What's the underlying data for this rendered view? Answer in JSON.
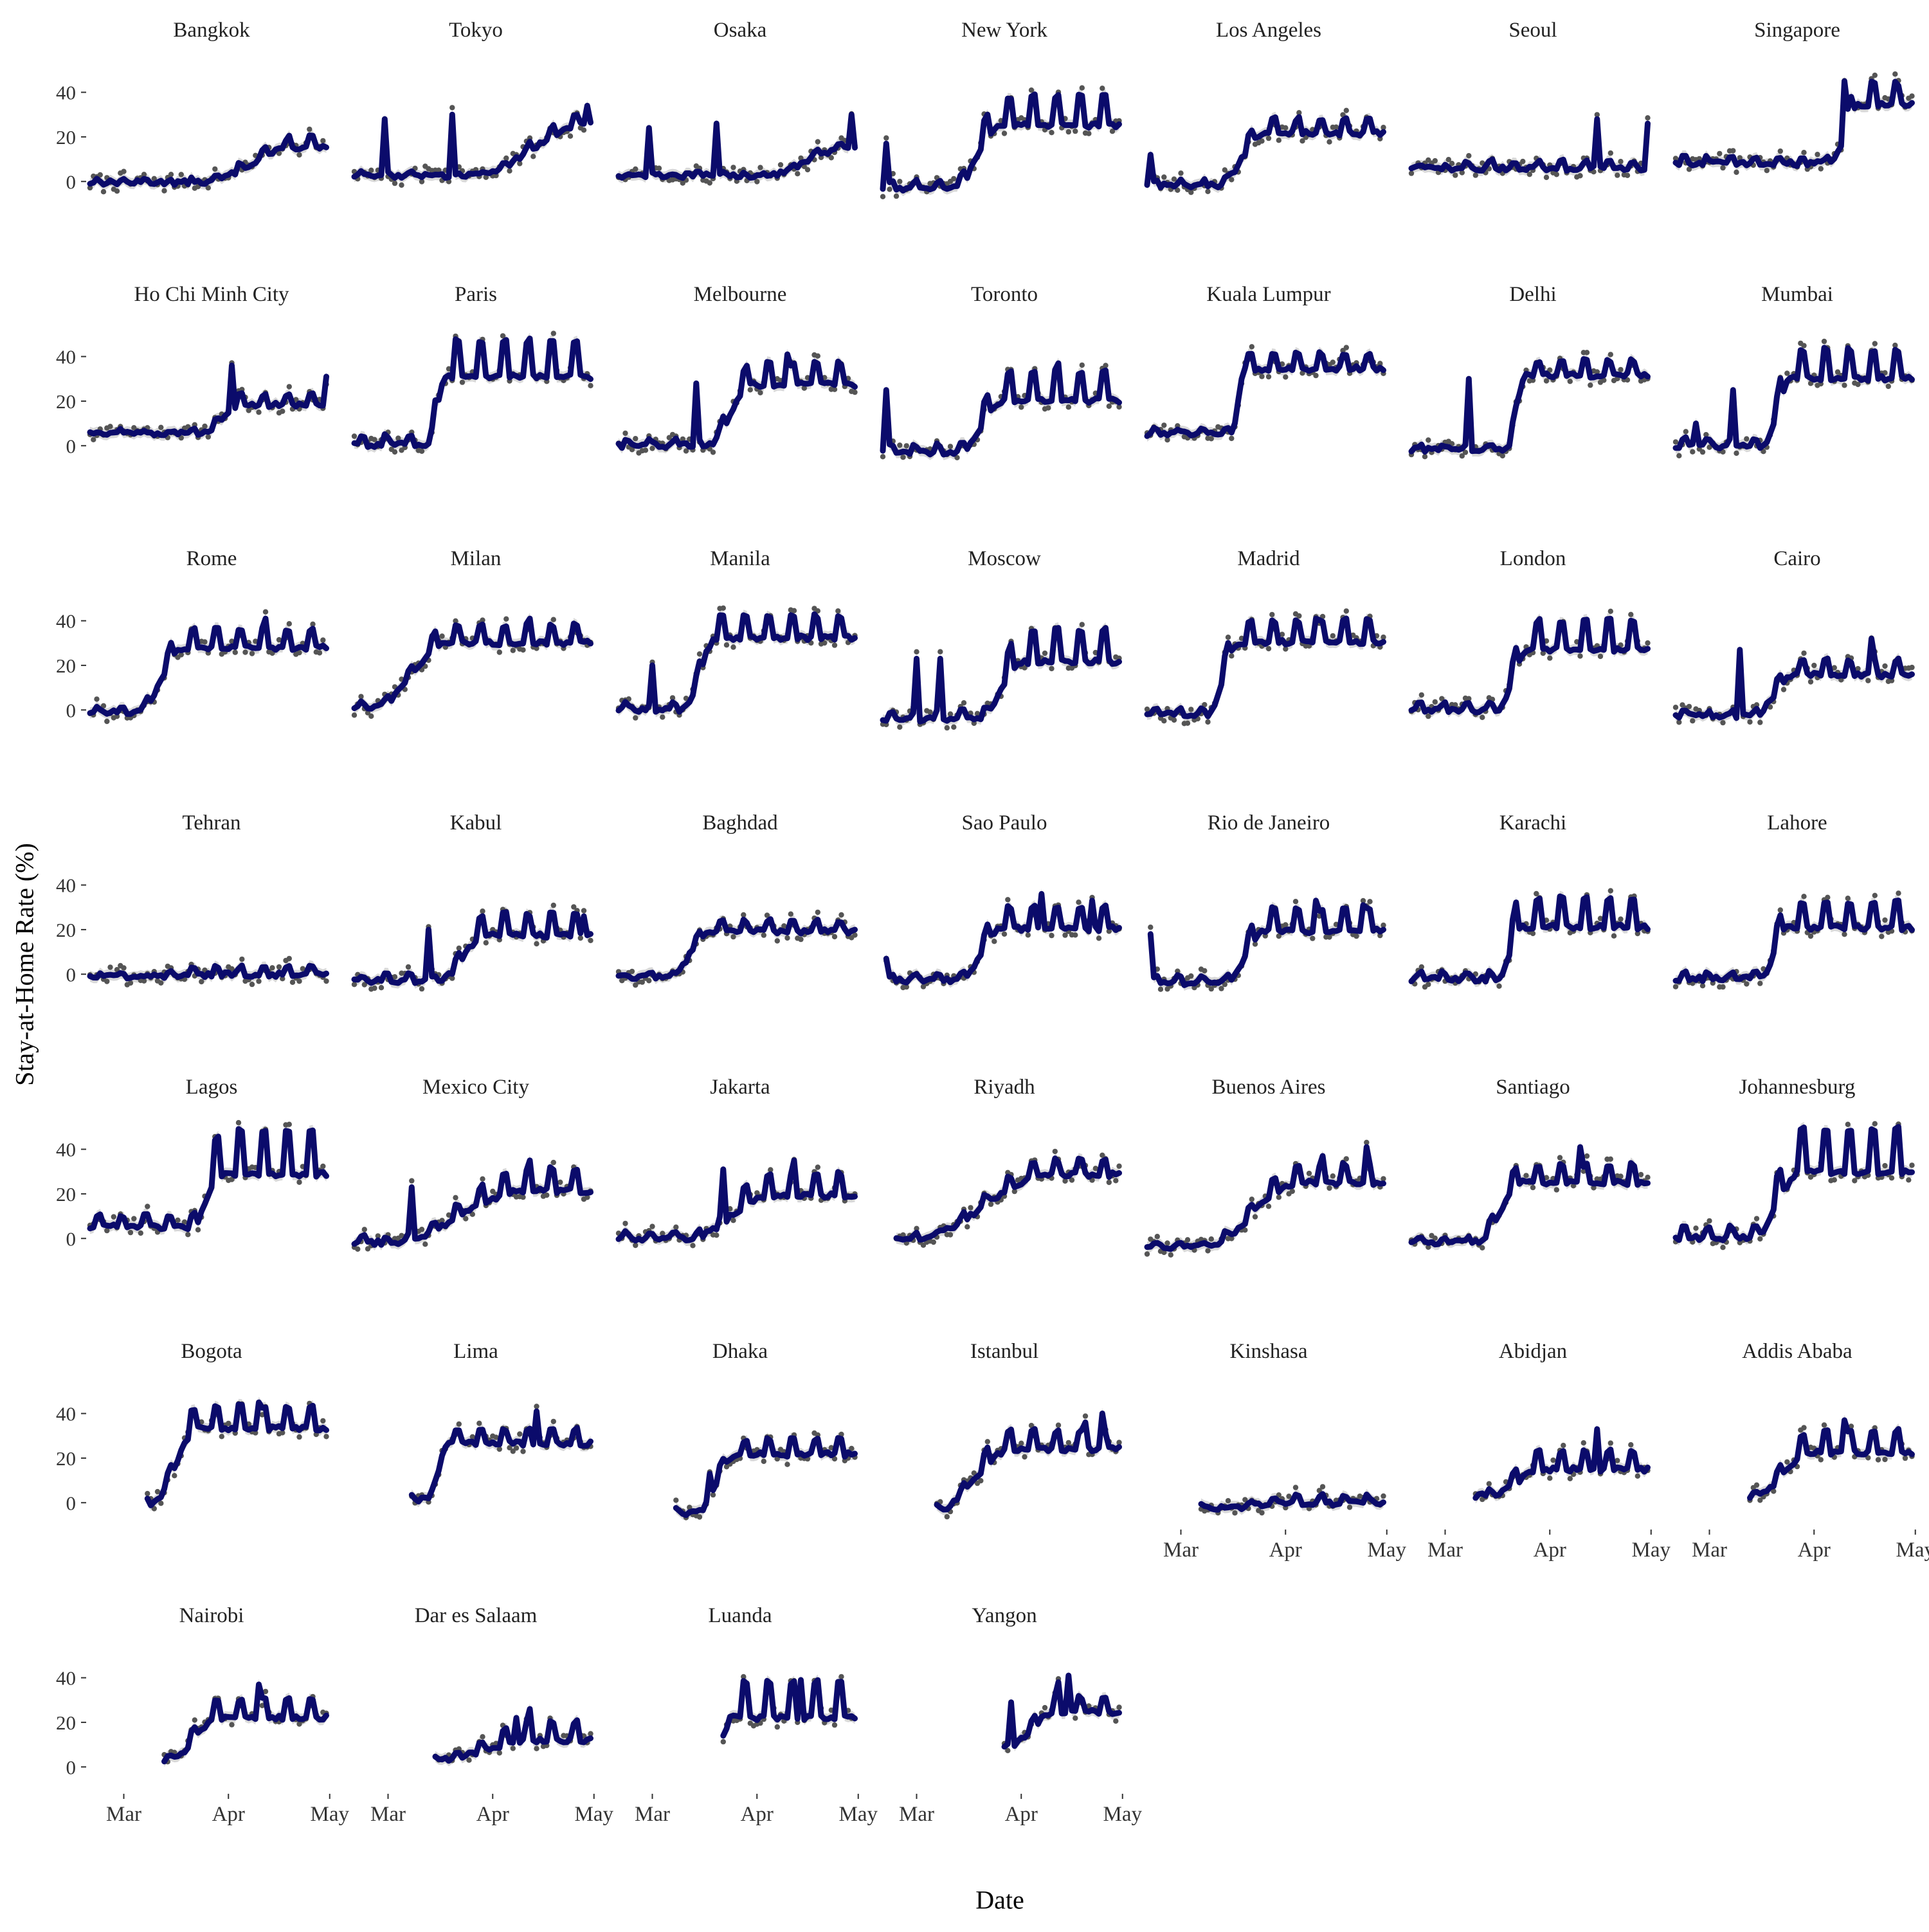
{
  "chart_data": {
    "type": "line",
    "layout": "facet-grid",
    "ylabel": "Stay-at-Home Rate (%)",
    "xlabel": "Date",
    "ylim": [
      -8,
      54
    ],
    "y_ticks": [
      0,
      20,
      40
    ],
    "x_domain": [
      "2020-02-20",
      "2020-05-02"
    ],
    "x_ticks": [
      {
        "date": "2020-03-01",
        "label": "Mar"
      },
      {
        "date": "2020-04-01",
        "label": "Apr"
      },
      {
        "date": "2020-05-01",
        "label": "May"
      }
    ],
    "colors": {
      "line": "#0b0b6b",
      "band": "#cccccc",
      "points": "#555555",
      "axis": "#333333",
      "text": "#222222"
    },
    "grid": false,
    "legend": "none",
    "facets": [
      {
        "city": "Bangkok",
        "start": "2020-02-20",
        "end": "2020-04-30",
        "base": 0,
        "plateau": 17,
        "rise_start": "2020-03-24",
        "rise_days": 28,
        "weekly_amp": 3,
        "spikes": []
      },
      {
        "city": "Tokyo",
        "start": "2020-02-20",
        "end": "2020-04-30",
        "base": 3,
        "plateau": 28,
        "rise_start": "2020-03-26",
        "rise_days": 35,
        "weekly_amp": 3,
        "spikes": [
          {
            "date": "2020-02-29",
            "value": 28
          },
          {
            "date": "2020-03-20",
            "value": 30
          },
          {
            "date": "2020-04-29",
            "value": 34
          }
        ]
      },
      {
        "city": "Osaka",
        "start": "2020-02-20",
        "end": "2020-04-30",
        "base": 3,
        "plateau": 16,
        "rise_start": "2020-04-03",
        "rise_days": 25,
        "weekly_amp": 2,
        "spikes": [
          {
            "date": "2020-02-29",
            "value": 24
          },
          {
            "date": "2020-03-20",
            "value": 26
          },
          {
            "date": "2020-04-29",
            "value": 30
          }
        ]
      },
      {
        "city": "New York",
        "start": "2020-02-20",
        "end": "2020-04-30",
        "base": -2,
        "plateau": 30,
        "rise_start": "2020-03-12",
        "rise_days": 14,
        "weekly_amp": 8,
        "spikes": [
          {
            "date": "2020-02-21",
            "value": 17
          }
        ]
      },
      {
        "city": "Los Angeles",
        "start": "2020-02-20",
        "end": "2020-04-30",
        "base": -1,
        "plateau": 24,
        "rise_start": "2020-03-12",
        "rise_days": 14,
        "weekly_amp": 4,
        "spikes": [
          {
            "date": "2020-02-21",
            "value": 12
          }
        ]
      },
      {
        "city": "Seoul",
        "start": "2020-02-20",
        "end": "2020-04-30",
        "base": 6,
        "plateau": 7,
        "rise_start": "2020-03-01",
        "rise_days": 10,
        "weekly_amp": 2,
        "spikes": [
          {
            "date": "2020-04-15",
            "value": 28
          },
          {
            "date": "2020-04-30",
            "value": 26
          }
        ]
      },
      {
        "city": "Singapore",
        "start": "2020-02-20",
        "end": "2020-04-30",
        "base": 9,
        "plateau": 38,
        "rise_start": "2020-04-06",
        "rise_days": 8,
        "weekly_amp": 6,
        "spikes": [
          {
            "date": "2020-04-10",
            "value": 45
          }
        ]
      },
      {
        "city": "Ho Chi Minh City",
        "start": "2020-02-20",
        "end": "2020-04-30",
        "base": 6,
        "plateau": 20,
        "rise_start": "2020-03-24",
        "rise_days": 12,
        "weekly_amp": 3,
        "spikes": [
          {
            "date": "2020-04-02",
            "value": 36
          },
          {
            "date": "2020-04-30",
            "value": 31
          }
        ]
      },
      {
        "city": "Paris",
        "start": "2020-02-20",
        "end": "2020-04-30",
        "base": 2,
        "plateau": 37,
        "rise_start": "2020-03-13",
        "rise_days": 5,
        "weekly_amp": 10,
        "spikes": []
      },
      {
        "city": "Melbourne",
        "start": "2020-02-20",
        "end": "2020-04-30",
        "base": 1,
        "plateau": 31,
        "rise_start": "2020-03-17",
        "rise_days": 14,
        "weekly_amp": 6,
        "spikes": [
          {
            "date": "2020-03-14",
            "value": 28
          },
          {
            "date": "2020-04-10",
            "value": 41
          }
        ]
      },
      {
        "city": "Toronto",
        "start": "2020-02-20",
        "end": "2020-04-30",
        "base": -2,
        "plateau": 25,
        "rise_start": "2020-03-13",
        "rise_days": 14,
        "weekly_amp": 8,
        "spikes": [
          {
            "date": "2020-02-21",
            "value": 25
          },
          {
            "date": "2020-04-12",
            "value": 37
          }
        ]
      },
      {
        "city": "Kuala Lumpur",
        "start": "2020-02-20",
        "end": "2020-04-30",
        "base": 6,
        "plateau": 37,
        "rise_start": "2020-03-16",
        "rise_days": 4,
        "weekly_amp": 4,
        "spikes": []
      },
      {
        "city": "Delhi",
        "start": "2020-02-20",
        "end": "2020-04-30",
        "base": -1,
        "plateau": 34,
        "rise_start": "2020-03-19",
        "rise_days": 6,
        "weekly_amp": 4,
        "spikes": [
          {
            "date": "2020-03-08",
            "value": 30
          }
        ]
      },
      {
        "city": "Mumbai",
        "start": "2020-02-20",
        "end": "2020-04-30",
        "base": 1,
        "plateau": 35,
        "rise_start": "2020-03-17",
        "rise_days": 8,
        "weekly_amp": 8,
        "spikes": [
          {
            "date": "2020-02-26",
            "value": 10
          },
          {
            "date": "2020-03-08",
            "value": 25
          }
        ]
      },
      {
        "city": "Rome",
        "start": "2020-02-20",
        "end": "2020-04-30",
        "base": 0,
        "plateau": 31,
        "rise_start": "2020-03-05",
        "rise_days": 14,
        "weekly_amp": 5,
        "spikes": [
          {
            "date": "2020-04-12",
            "value": 41
          }
        ]
      },
      {
        "city": "Milan",
        "start": "2020-02-20",
        "end": "2020-04-30",
        "base": 2,
        "plateau": 33,
        "rise_start": "2020-02-26",
        "rise_days": 22,
        "weekly_amp": 5,
        "spikes": [
          {
            "date": "2020-04-12",
            "value": 41
          }
        ]
      },
      {
        "city": "Manila",
        "start": "2020-02-20",
        "end": "2020-04-30",
        "base": 1,
        "plateau": 36,
        "rise_start": "2020-03-10",
        "rise_days": 10,
        "weekly_amp": 6,
        "spikes": [
          {
            "date": "2020-03-01",
            "value": 20
          }
        ]
      },
      {
        "city": "Moscow",
        "start": "2020-02-20",
        "end": "2020-04-30",
        "base": -3,
        "plateau": 27,
        "rise_start": "2020-03-20",
        "rise_days": 12,
        "weekly_amp": 9,
        "spikes": [
          {
            "date": "2020-03-01",
            "value": 23
          },
          {
            "date": "2020-03-08",
            "value": 23
          }
        ]
      },
      {
        "city": "Madrid",
        "start": "2020-02-20",
        "end": "2020-04-30",
        "base": -1,
        "plateau": 34,
        "rise_start": "2020-03-09",
        "rise_days": 9,
        "weekly_amp": 6,
        "spikes": [
          {
            "date": "2020-04-10",
            "value": 41
          }
        ]
      },
      {
        "city": "London",
        "start": "2020-02-20",
        "end": "2020-04-30",
        "base": 1,
        "plateau": 32,
        "rise_start": "2020-03-16",
        "rise_days": 10,
        "weekly_amp": 8,
        "spikes": []
      },
      {
        "city": "Cairo",
        "start": "2020-02-20",
        "end": "2020-04-30",
        "base": -2,
        "plateau": 18,
        "rise_start": "2020-03-14",
        "rise_days": 12,
        "weekly_amp": 4,
        "spikes": [
          {
            "date": "2020-03-10",
            "value": 27
          },
          {
            "date": "2020-04-18",
            "value": 32
          }
        ]
      },
      {
        "city": "Tehran",
        "start": "2020-02-20",
        "end": "2020-04-30",
        "base": -1,
        "plateau": 1,
        "rise_start": "2020-03-01",
        "rise_days": 30,
        "weekly_amp": 2,
        "spikes": []
      },
      {
        "city": "Kabul",
        "start": "2020-02-20",
        "end": "2020-04-30",
        "base": -2,
        "plateau": 21,
        "rise_start": "2020-03-16",
        "rise_days": 14,
        "weekly_amp": 6,
        "spikes": [
          {
            "date": "2020-03-13",
            "value": 20
          },
          {
            "date": "2020-04-28",
            "value": 26
          }
        ]
      },
      {
        "city": "Baghdad",
        "start": "2020-02-20",
        "end": "2020-04-30",
        "base": -1,
        "plateau": 21,
        "rise_start": "2020-03-06",
        "rise_days": 12,
        "weekly_amp": 3,
        "spikes": []
      },
      {
        "city": "Sao Paulo",
        "start": "2020-02-21",
        "end": "2020-04-30",
        "base": -2,
        "plateau": 24,
        "rise_start": "2020-03-14",
        "rise_days": 12,
        "weekly_amp": 6,
        "spikes": [
          {
            "date": "2020-02-21",
            "value": 7
          },
          {
            "date": "2020-04-07",
            "value": 36
          },
          {
            "date": "2020-04-22",
            "value": 33
          }
        ]
      },
      {
        "city": "Rio de Janeiro",
        "start": "2020-02-21",
        "end": "2020-04-30",
        "base": -3,
        "plateau": 23,
        "rise_start": "2020-03-14",
        "rise_days": 12,
        "weekly_amp": 6,
        "spikes": [
          {
            "date": "2020-02-21",
            "value": 18
          },
          {
            "date": "2020-04-10",
            "value": 33
          },
          {
            "date": "2020-04-24",
            "value": 31
          }
        ]
      },
      {
        "city": "Karachi",
        "start": "2020-02-20",
        "end": "2020-04-30",
        "base": -1,
        "plateau": 26,
        "rise_start": "2020-03-17",
        "rise_days": 6,
        "weekly_amp": 8,
        "spikes": []
      },
      {
        "city": "Lahore",
        "start": "2020-02-20",
        "end": "2020-04-30",
        "base": -1,
        "plateau": 25,
        "rise_start": "2020-03-16",
        "rise_days": 8,
        "weekly_amp": 7,
        "spikes": []
      },
      {
        "city": "Lagos",
        "start": "2020-02-20",
        "end": "2020-04-30",
        "base": 7,
        "plateau": 36,
        "rise_start": "2020-03-21",
        "rise_days": 9,
        "weekly_amp": 12,
        "spikes": []
      },
      {
        "city": "Mexico City",
        "start": "2020-02-20",
        "end": "2020-04-30",
        "base": -1,
        "plateau": 25,
        "rise_start": "2020-03-02",
        "rise_days": 40,
        "weekly_amp": 6,
        "spikes": [
          {
            "date": "2020-03-08",
            "value": 23
          },
          {
            "date": "2020-04-12",
            "value": 35
          }
        ]
      },
      {
        "city": "Jakarta",
        "start": "2020-02-20",
        "end": "2020-04-30",
        "base": 1,
        "plateau": 23,
        "rise_start": "2020-03-12",
        "rise_days": 24,
        "weekly_amp": 6,
        "spikes": [
          {
            "date": "2020-03-22",
            "value": 31
          },
          {
            "date": "2020-04-12",
            "value": 35
          }
        ]
      },
      {
        "city": "Riyadh",
        "start": "2020-02-24",
        "end": "2020-04-30",
        "base": 1,
        "plateau": 31,
        "rise_start": "2020-03-01",
        "rise_days": 40,
        "weekly_amp": 4,
        "spikes": []
      },
      {
        "city": "Buenos Aires",
        "start": "2020-02-20",
        "end": "2020-04-30",
        "base": -3,
        "plateau": 28,
        "rise_start": "2020-03-08",
        "rise_days": 28,
        "weekly_amp": 5,
        "spikes": [
          {
            "date": "2020-04-12",
            "value": 37
          },
          {
            "date": "2020-04-25",
            "value": 41
          }
        ]
      },
      {
        "city": "Santiago",
        "start": "2020-02-20",
        "end": "2020-04-30",
        "base": -1,
        "plateau": 28,
        "rise_start": "2020-03-10",
        "rise_days": 14,
        "weekly_amp": 5,
        "spikes": [
          {
            "date": "2020-04-10",
            "value": 41
          }
        ]
      },
      {
        "city": "Johannesburg",
        "start": "2020-02-20",
        "end": "2020-04-30",
        "base": 2,
        "plateau": 37,
        "rise_start": "2020-03-14",
        "rise_days": 14,
        "weekly_amp": 12,
        "spikes": []
      },
      {
        "city": "Bogota",
        "start": "2020-03-08",
        "end": "2020-04-30",
        "base": 0,
        "plateau": 37,
        "rise_start": "2020-03-09",
        "rise_days": 14,
        "weekly_amp": 6,
        "spikes": [
          {
            "date": "2020-04-10",
            "value": 45
          }
        ]
      },
      {
        "city": "Lima",
        "start": "2020-03-08",
        "end": "2020-04-30",
        "base": 2,
        "plateau": 29,
        "rise_start": "2020-03-13",
        "rise_days": 6,
        "weekly_amp": 4,
        "spikes": [
          {
            "date": "2020-04-14",
            "value": 41
          }
        ]
      },
      {
        "city": "Dhaka",
        "start": "2020-03-08",
        "end": "2020-04-30",
        "base": -4,
        "plateau": 24,
        "rise_start": "2020-03-14",
        "rise_days": 12,
        "weekly_amp": 4,
        "spikes": [
          {
            "date": "2020-03-18",
            "value": 13
          }
        ]
      },
      {
        "city": "Istanbul",
        "start": "2020-03-07",
        "end": "2020-04-30",
        "base": -3,
        "plateau": 27,
        "rise_start": "2020-03-07",
        "rise_days": 22,
        "weekly_amp": 5,
        "spikes": [
          {
            "date": "2020-04-20",
            "value": 36
          },
          {
            "date": "2020-04-25",
            "value": 40
          }
        ]
      },
      {
        "city": "Kinshasa",
        "start": "2020-03-07",
        "end": "2020-04-30",
        "base": -2,
        "plateau": 1,
        "rise_start": "2020-03-15",
        "rise_days": 20,
        "weekly_amp": 2,
        "spikes": []
      },
      {
        "city": "Abidjan",
        "start": "2020-03-10",
        "end": "2020-04-30",
        "base": 4,
        "plateau": 18,
        "rise_start": "2020-03-14",
        "rise_days": 16,
        "weekly_amp": 5,
        "spikes": [
          {
            "date": "2020-04-15",
            "value": 33
          }
        ]
      },
      {
        "city": "Addis Ababa",
        "start": "2020-03-13",
        "end": "2020-04-30",
        "base": 4,
        "plateau": 26,
        "rise_start": "2020-03-14",
        "rise_days": 18,
        "weekly_amp": 6,
        "spikes": [
          {
            "date": "2020-04-10",
            "value": 37
          }
        ]
      },
      {
        "city": "Nairobi",
        "start": "2020-03-13",
        "end": "2020-04-30",
        "base": 4,
        "plateau": 25,
        "rise_start": "2020-03-14",
        "rise_days": 16,
        "weekly_amp": 5,
        "spikes": [
          {
            "date": "2020-04-10",
            "value": 37
          }
        ]
      },
      {
        "city": "Dar es Salaam",
        "start": "2020-03-15",
        "end": "2020-04-30",
        "base": 4,
        "plateau": 15,
        "rise_start": "2020-03-16",
        "rise_days": 28,
        "weekly_amp": 5,
        "spikes": [
          {
            "date": "2020-04-08",
            "value": 22
          },
          {
            "date": "2020-04-12",
            "value": 26
          }
        ]
      },
      {
        "city": "Luanda",
        "start": "2020-03-22",
        "end": "2020-04-30",
        "base": 12,
        "plateau": 28,
        "rise_start": "2020-03-22",
        "rise_days": 2,
        "weekly_amp": 10,
        "spikes": [
          {
            "date": "2020-04-14",
            "value": 39
          }
        ]
      },
      {
        "city": "Yangon",
        "start": "2020-03-27",
        "end": "2020-04-30",
        "base": 10,
        "plateau": 27,
        "rise_start": "2020-03-28",
        "rise_days": 14,
        "weekly_amp": 4,
        "spikes": [
          {
            "date": "2020-03-29",
            "value": 29
          },
          {
            "date": "2020-04-12",
            "value": 38
          },
          {
            "date": "2020-04-15",
            "value": 41
          }
        ]
      }
    ]
  }
}
